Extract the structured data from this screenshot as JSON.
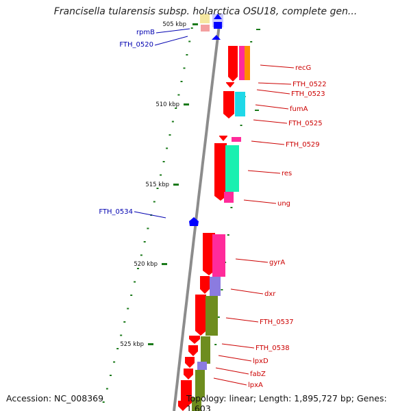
{
  "title": "Francisella tularensis subsp. holarctica OSU18, complete gen...",
  "footer": {
    "accession": "Accession: NC_008369",
    "summary": "Topology: linear; Length: 1,895,727 bp; Genes: 1,603"
  },
  "colors": {
    "forward_label": "#0000b0",
    "reverse_label": "#cc0000",
    "red": "#ff0000",
    "magenta": "#ff2b9a",
    "orange": "#ff8c00",
    "cyan": "#1fd8e8",
    "spring": "#18f0b0",
    "olive": "#6e8d1e",
    "purple": "#8b7be0",
    "blue": "#0000ff",
    "tick": "#1a7a1a"
  },
  "ticks": [
    {
      "label": "505 kbp"
    },
    {
      "label": "510 kbp"
    },
    {
      "label": "515 kbp"
    },
    {
      "label": "520 kbp"
    },
    {
      "label": "525 kbp"
    }
  ],
  "labels": [
    {
      "text": "rpmB",
      "strand": "forward"
    },
    {
      "text": "FTH_0520",
      "strand": "forward"
    },
    {
      "text": "recG",
      "strand": "reverse"
    },
    {
      "text": "FTH_0522",
      "strand": "reverse"
    },
    {
      "text": "FTH_0523",
      "strand": "reverse"
    },
    {
      "text": "fumA",
      "strand": "reverse"
    },
    {
      "text": "FTH_0525",
      "strand": "reverse"
    },
    {
      "text": "FTH_0529",
      "strand": "reverse"
    },
    {
      "text": "res",
      "strand": "reverse"
    },
    {
      "text": "FTH_0534",
      "strand": "forward"
    },
    {
      "text": "ung",
      "strand": "reverse"
    },
    {
      "text": "gyrA",
      "strand": "reverse"
    },
    {
      "text": "dxr",
      "strand": "reverse"
    },
    {
      "text": "FTH_0537",
      "strand": "reverse"
    },
    {
      "text": "FTH_0538",
      "strand": "reverse"
    },
    {
      "text": "lpxD",
      "strand": "reverse"
    },
    {
      "text": "fabZ",
      "strand": "reverse"
    },
    {
      "text": "lpxA",
      "strand": "reverse"
    }
  ]
}
